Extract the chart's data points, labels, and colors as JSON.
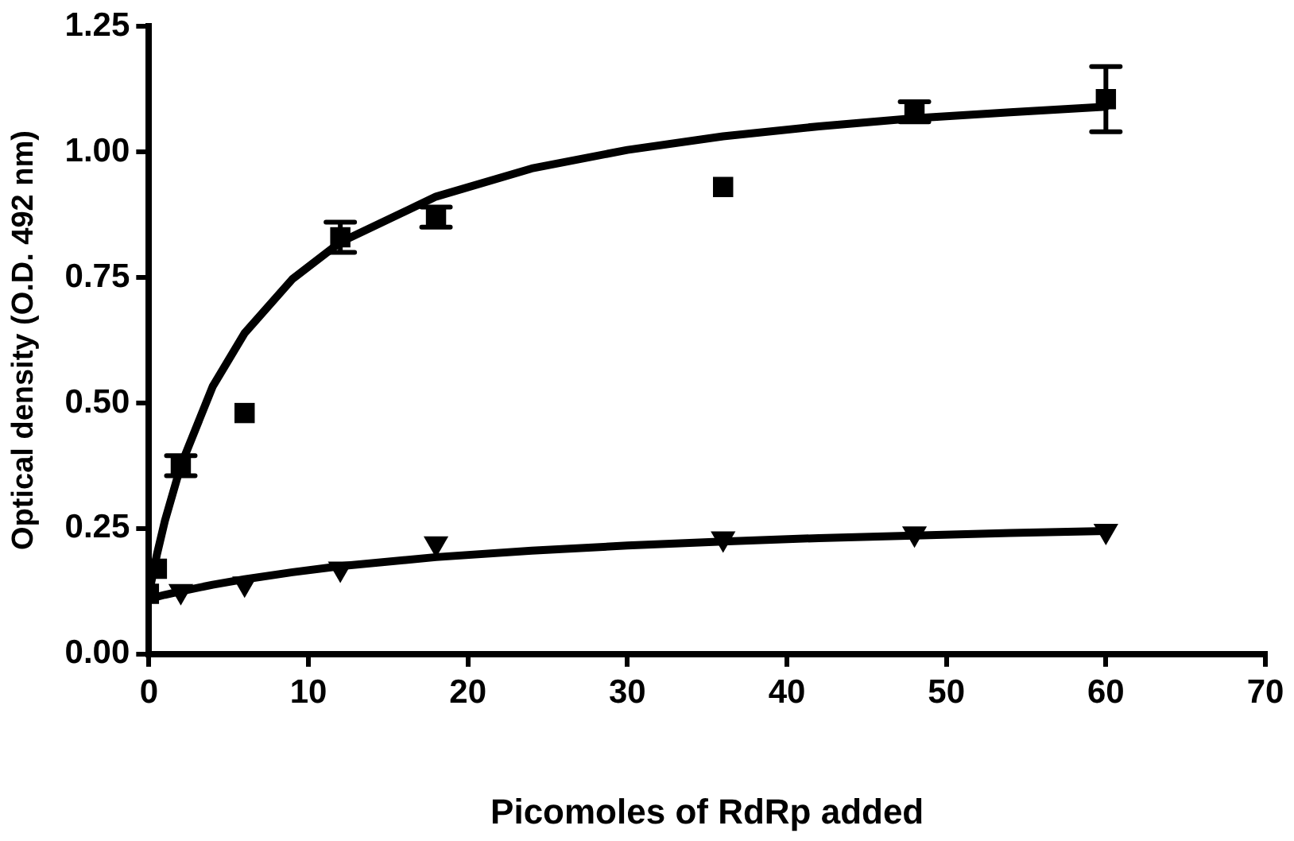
{
  "chart_data": {
    "type": "scatter",
    "xlabel": "Picomoles of RdRp added",
    "ylabel": "Optical density (O.D. 492 nm)",
    "xlim": [
      0,
      70
    ],
    "xticks": [
      0,
      10,
      20,
      30,
      40,
      50,
      60,
      70
    ],
    "ylim": [
      0,
      1.25
    ],
    "yticks": [
      {
        "value": 0,
        "label": "0.00"
      },
      {
        "value": 0.25,
        "label": "0.25"
      },
      {
        "value": 0.5,
        "label": "0.50"
      },
      {
        "value": 0.75,
        "label": "0.75"
      },
      {
        "value": 1,
        "label": "1.00"
      },
      {
        "value": 1.25,
        "label": "1.25"
      }
    ],
    "grid": false,
    "legend": false,
    "series": [
      {
        "type": "scatter",
        "color": "#000000",
        "marker": "square",
        "x": [
          0,
          0.5,
          2,
          6,
          12,
          18,
          36,
          48,
          60
        ],
        "values": [
          0.12,
          0.17,
          0.375,
          0.48,
          0.83,
          0.87,
          0.93,
          1.08,
          1.105
        ],
        "errors": [
          null,
          null,
          0.02,
          null,
          0.03,
          0.02,
          null,
          0.02,
          0.065
        ]
      },
      {
        "type": "scatter",
        "color": "#000000",
        "marker": "triangle",
        "x": [
          2,
          6,
          12,
          18,
          36,
          48,
          60
        ],
        "values": [
          0.125,
          0.14,
          0.17,
          0.22,
          0.23,
          0.24,
          0.245
        ]
      },
      {
        "type": "line",
        "color": "#000000",
        "marker": "none",
        "line_style": "solid",
        "x": [
          0,
          0.5,
          1,
          2,
          4,
          6,
          9,
          12,
          18,
          24,
          30,
          36,
          42,
          48,
          54,
          60
        ],
        "values": [
          0.12,
          0.198,
          0.265,
          0.375,
          0.533,
          0.639,
          0.747,
          0.82,
          0.911,
          0.967,
          1.004,
          1.031,
          1.051,
          1.067,
          1.079,
          1.09
        ]
      },
      {
        "type": "line",
        "color": "#000000",
        "marker": "none",
        "line_style": "solid",
        "x": [
          0,
          1,
          2,
          4,
          6,
          9,
          12,
          18,
          24,
          30,
          36,
          42,
          48,
          54,
          60
        ],
        "values": [
          0.11,
          0.118,
          0.125,
          0.138,
          0.149,
          0.163,
          0.175,
          0.193,
          0.206,
          0.216,
          0.224,
          0.231,
          0.236,
          0.241,
          0.245
        ]
      }
    ]
  }
}
